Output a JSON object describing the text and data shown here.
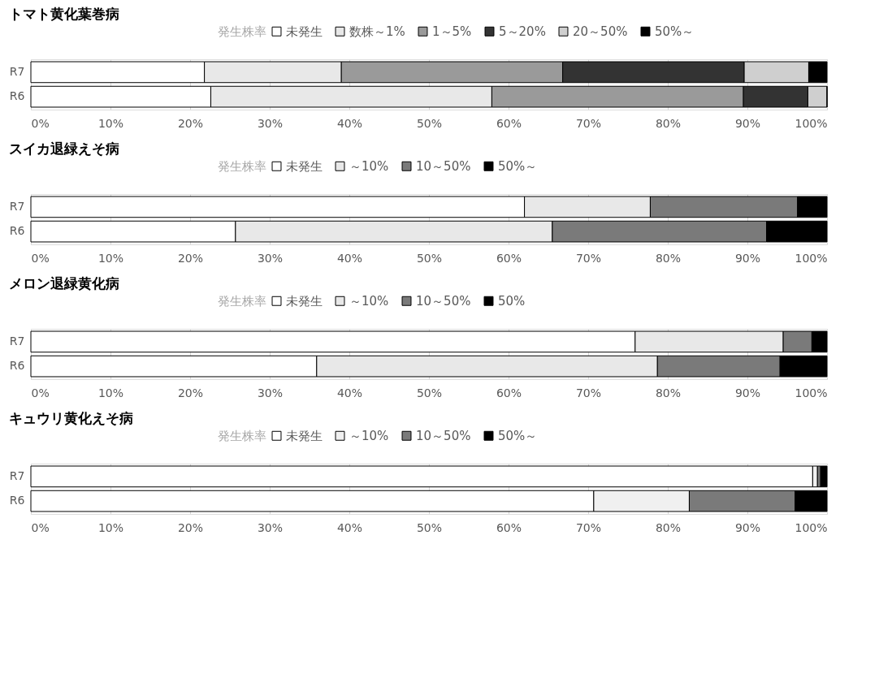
{
  "chart_data": [
    {
      "type": "bar",
      "title": "トマト黄化葉巻病",
      "legend_title": "発生株率",
      "orientation": "horizontal",
      "stacked": true,
      "legend": "top",
      "grid": "x",
      "categories": [
        "R7",
        "R6"
      ],
      "xlim": [
        0,
        100
      ],
      "xticks": [
        {
          "value": 0,
          "label": "0%"
        },
        {
          "value": 10,
          "label": "10%"
        },
        {
          "value": 20,
          "label": "20%"
        },
        {
          "value": 30,
          "label": "30%"
        },
        {
          "value": 40,
          "label": "40%"
        },
        {
          "value": 50,
          "label": "50%"
        },
        {
          "value": 60,
          "label": "60%"
        },
        {
          "value": 70,
          "label": "70%"
        },
        {
          "value": 80,
          "label": "80%"
        },
        {
          "value": 90,
          "label": "90%"
        },
        {
          "value": 100,
          "label": "100%"
        }
      ],
      "series": [
        {
          "name": "未発生",
          "color": "#ffffff",
          "values": [
            21.8,
            22.6
          ]
        },
        {
          "name": "数株～1%",
          "color": "#e8e8e8",
          "values": [
            17.2,
            35.3
          ]
        },
        {
          "name": "1～5%",
          "color": "#9a9a9a",
          "values": [
            27.8,
            31.6
          ]
        },
        {
          "name": "5～20%",
          "color": "#333333",
          "values": [
            22.8,
            8.1
          ]
        },
        {
          "name": "20～50%",
          "color": "#cfcfcf",
          "values": [
            8.1,
            2.4
          ]
        },
        {
          "name": "50%～",
          "color": "#000000",
          "values": [
            2.3,
            0
          ]
        }
      ]
    },
    {
      "type": "bar",
      "title": "スイカ退緑えそ病",
      "legend_title": "発生株率",
      "orientation": "horizontal",
      "stacked": true,
      "legend": "top",
      "grid": "x",
      "categories": [
        "R7",
        "R6"
      ],
      "xlim": [
        0,
        100
      ],
      "xticks": [
        {
          "value": 0,
          "label": "0%"
        },
        {
          "value": 10,
          "label": "10%"
        },
        {
          "value": 20,
          "label": "20%"
        },
        {
          "value": 30,
          "label": "30%"
        },
        {
          "value": 40,
          "label": "40%"
        },
        {
          "value": 50,
          "label": "50%"
        },
        {
          "value": 60,
          "label": "60%"
        },
        {
          "value": 70,
          "label": "70%"
        },
        {
          "value": 80,
          "label": "80%"
        },
        {
          "value": 90,
          "label": "90%"
        },
        {
          "value": 100,
          "label": "100%"
        }
      ],
      "series": [
        {
          "name": "未発生",
          "color": "#ffffff",
          "values": [
            62.0,
            25.7
          ]
        },
        {
          "name": "～10%",
          "color": "#e8e8e8",
          "values": [
            15.8,
            39.8
          ]
        },
        {
          "name": "10～50%",
          "color": "#7a7a7a",
          "values": [
            18.5,
            26.9
          ]
        },
        {
          "name": "50%～",
          "color": "#000000",
          "values": [
            3.7,
            7.6
          ]
        }
      ]
    },
    {
      "type": "bar",
      "title": "メロン退緑黄化病",
      "legend_title": "発生株率",
      "orientation": "horizontal",
      "stacked": true,
      "legend": "top",
      "grid": "x",
      "categories": [
        "R7",
        "R6"
      ],
      "xlim": [
        0,
        100
      ],
      "xticks": [
        {
          "value": 0,
          "label": "0%"
        },
        {
          "value": 10,
          "label": "10%"
        },
        {
          "value": 20,
          "label": "20%"
        },
        {
          "value": 30,
          "label": "30%"
        },
        {
          "value": 40,
          "label": "40%"
        },
        {
          "value": 50,
          "label": "50%"
        },
        {
          "value": 60,
          "label": "60%"
        },
        {
          "value": 70,
          "label": "70%"
        },
        {
          "value": 80,
          "label": "80%"
        },
        {
          "value": 90,
          "label": "90%"
        },
        {
          "value": 100,
          "label": "100%"
        }
      ],
      "series": [
        {
          "name": "未発生",
          "color": "#ffffff",
          "values": [
            75.9,
            35.9
          ]
        },
        {
          "name": "～10%",
          "color": "#e8e8e8",
          "values": [
            18.6,
            42.8
          ]
        },
        {
          "name": "10～50%",
          "color": "#7a7a7a",
          "values": [
            3.6,
            15.4
          ]
        },
        {
          "name": "50%",
          "color": "#000000",
          "values": [
            1.9,
            5.9
          ]
        }
      ]
    },
    {
      "type": "bar",
      "title": "キュウリ黄化えそ病",
      "legend_title": "発生株率",
      "orientation": "horizontal",
      "stacked": true,
      "legend": "top",
      "grid": "x",
      "categories": [
        "R7",
        "R6"
      ],
      "xlim": [
        0,
        100
      ],
      "xticks": [
        {
          "value": 0,
          "label": "0%"
        },
        {
          "value": 10,
          "label": "10%"
        },
        {
          "value": 20,
          "label": "20%"
        },
        {
          "value": 30,
          "label": "30%"
        },
        {
          "value": 40,
          "label": "40%"
        },
        {
          "value": 50,
          "label": "50%"
        },
        {
          "value": 60,
          "label": "60%"
        },
        {
          "value": 70,
          "label": "70%"
        },
        {
          "value": 80,
          "label": "80%"
        },
        {
          "value": 90,
          "label": "90%"
        },
        {
          "value": 100,
          "label": "100%"
        }
      ],
      "series": [
        {
          "name": "未発生",
          "color": "#ffffff",
          "values": [
            98.2,
            70.7
          ]
        },
        {
          "name": "～10%",
          "color": "#f0f0f0",
          "values": [
            0.6,
            12.0
          ]
        },
        {
          "name": "10～50%",
          "color": "#7a7a7a",
          "values": [
            0.4,
            13.3
          ]
        },
        {
          "name": "50%～",
          "color": "#000000",
          "values": [
            0.8,
            4.0
          ]
        }
      ]
    }
  ]
}
